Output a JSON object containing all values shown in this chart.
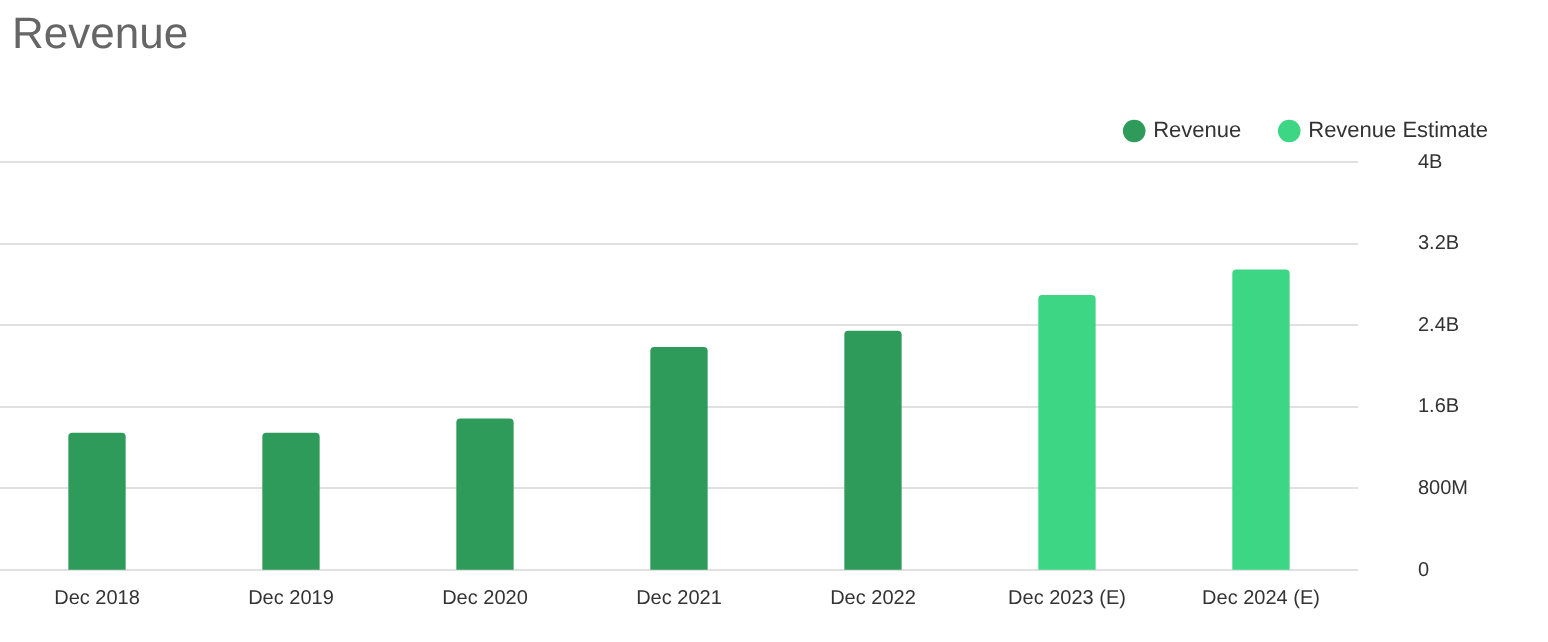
{
  "chart_data": {
    "type": "bar",
    "title": "Revenue",
    "categories": [
      "Dec 2018",
      "Dec 2019",
      "Dec 2020",
      "Dec 2021",
      "Dec 2022",
      "Dec 2023 (E)",
      "Dec 2024 (E)"
    ],
    "series": [
      {
        "name": "Revenue",
        "color": "#2e9b5a",
        "values": [
          1340000000,
          1340000000,
          1480000000,
          2180000000,
          2340000000,
          null,
          null
        ]
      },
      {
        "name": "Revenue Estimate",
        "color": "#3dd685",
        "values": [
          null,
          null,
          null,
          null,
          null,
          2690000000,
          2940000000
        ]
      }
    ],
    "ylim": [
      0,
      4000000000
    ],
    "yticks": [
      {
        "value": 0,
        "label": "0"
      },
      {
        "value": 800000000,
        "label": "800M"
      },
      {
        "value": 1600000000,
        "label": "1.6B"
      },
      {
        "value": 2400000000,
        "label": "2.4B"
      },
      {
        "value": 3200000000,
        "label": "3.2B"
      },
      {
        "value": 4000000000,
        "label": "4B"
      }
    ],
    "grid": "y",
    "legend": "top right"
  }
}
